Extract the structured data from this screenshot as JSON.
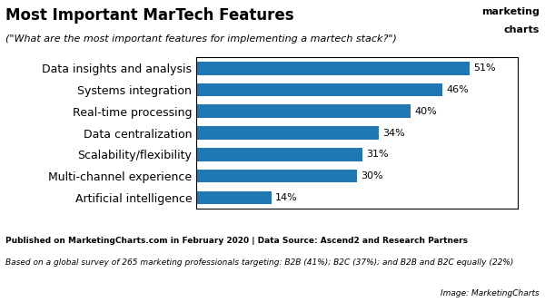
{
  "chart_data": {
    "type": "bar",
    "orientation": "horizontal",
    "title": "Most Important MarTech Features",
    "subtitle": "(\"What are the most important features for implementing a martech stack?\")",
    "categories": [
      "Data insights and analysis",
      "Systems integration",
      "Real-time processing",
      "Data centralization",
      "Scalability/flexibility",
      "Multi-channel experience",
      "Artificial intelligence"
    ],
    "values": [
      51,
      46,
      40,
      34,
      31,
      30,
      14
    ],
    "value_labels": [
      "51%",
      "46%",
      "40%",
      "34%",
      "31%",
      "30%",
      "14%"
    ],
    "data_labels": true,
    "xlim": [
      0,
      60
    ],
    "tick_labels": "y",
    "grid": false,
    "annotations": [
      "marketing",
      "charts",
      "Published on MarketingCharts.com in February 2020 | Data Source: Ascend2 and Research Partners",
      "Based on a global survey of 265 marketing professionals targeting: B2B (41%); B2C (37%); and B2B and B2C equally (22%)",
      "Image: MarketingCharts"
    ]
  }
}
